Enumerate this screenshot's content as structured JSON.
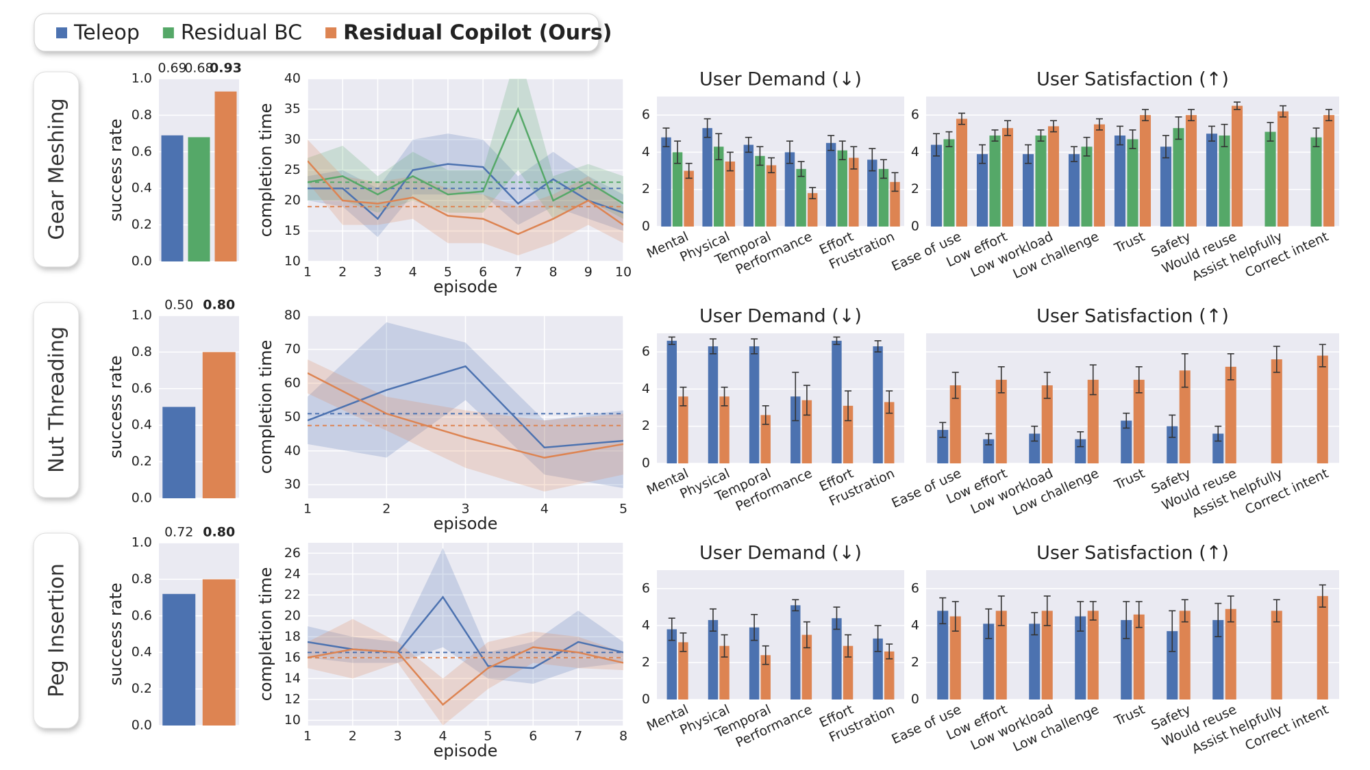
{
  "rows": [
    "Gear Meshing",
    "Nut Threading",
    "Peg Insertion"
  ],
  "chart_data": [
    {
      "type": "success",
      "ylabel": "success rate",
      "ylim": [
        0,
        1
      ],
      "yticks": [
        {
          "value": 0,
          "label": "0.0"
        },
        0.2,
        0.4,
        0.6,
        0.8,
        {
          "value": 1,
          "label": "1.0"
        }
      ],
      "grid": true,
      "series": [
        {
          "name": "Teleop",
          "color": "#4c72b0",
          "values": [
            0.69
          ]
        },
        {
          "name": "Residual BC",
          "color": "#55a868",
          "values": [
            0.68
          ]
        },
        {
          "name": "Residual Copilot (Ours)",
          "color": "#dd8452",
          "values": [
            0.93
          ]
        }
      ]
    },
    {
      "type": "line",
      "xlabel": "episode",
      "ylabel": "completion time",
      "x": [
        1,
        2,
        3,
        4,
        5,
        6,
        7,
        8,
        9,
        10
      ],
      "xlim": [
        1,
        10
      ],
      "xticks": [
        1,
        2,
        3,
        4,
        5,
        6,
        7,
        8,
        9,
        10
      ],
      "ylim": [
        10,
        40
      ],
      "yticks": [
        10,
        15,
        20,
        25,
        30,
        35,
        40
      ],
      "grid": true,
      "series": [
        {
          "color": "#4c72b0",
          "values": [
            22,
            22,
            17,
            25,
            26,
            25.5,
            19.5,
            23.5,
            20,
            18
          ],
          "lower": [
            20,
            19,
            14,
            21,
            21,
            21,
            16,
            19,
            17,
            15
          ],
          "upper": [
            24,
            25,
            22,
            30,
            31,
            30,
            24,
            28,
            24,
            21
          ],
          "mean": 22
        },
        {
          "color": "#55a868",
          "values": [
            23,
            24,
            21,
            24,
            21,
            21.5,
            35,
            20,
            23,
            19.5
          ],
          "lower": [
            20,
            20,
            18,
            20,
            18,
            18,
            25,
            17,
            20,
            17
          ],
          "upper": [
            27,
            29,
            24,
            28,
            25,
            25,
            45,
            24,
            26,
            24
          ],
          "mean": 23
        },
        {
          "color": "#dd8452",
          "values": [
            26.5,
            20,
            19.5,
            20.5,
            17.5,
            17,
            14.5,
            17,
            20,
            16
          ],
          "lower": [
            23,
            16,
            16,
            17,
            13,
            13,
            11,
            13,
            16,
            13
          ],
          "upper": [
            30,
            24,
            23,
            24,
            22,
            21,
            19,
            21,
            24,
            19
          ],
          "mean": 19
        }
      ]
    },
    {
      "type": "errorbar",
      "title": "User Demand (↓)",
      "categories": [
        "Mental",
        "Physical",
        "Temporal",
        "Performance",
        "Effort",
        "Frustration"
      ],
      "ylim": [
        0,
        7
      ],
      "yticks": [
        0,
        2,
        4,
        6
      ],
      "grid": true,
      "ytick_labels": true,
      "series": [
        {
          "color": "#4c72b0",
          "values": [
            4.8,
            5.3,
            4.4,
            4.0,
            4.5,
            3.6
          ],
          "errors": [
            0.5,
            0.5,
            0.4,
            0.6,
            0.4,
            0.6
          ]
        },
        {
          "color": "#55a868",
          "values": [
            4.0,
            4.3,
            3.8,
            3.1,
            4.1,
            3.1
          ],
          "errors": [
            0.6,
            0.7,
            0.5,
            0.4,
            0.5,
            0.5
          ]
        },
        {
          "color": "#dd8452",
          "values": [
            3.0,
            3.5,
            3.3,
            1.8,
            3.7,
            2.4
          ],
          "errors": [
            0.4,
            0.5,
            0.4,
            0.3,
            0.6,
            0.5
          ]
        }
      ]
    },
    {
      "type": "errorbar",
      "title": "User Satisfaction (↑)",
      "categories": [
        "Ease of use",
        "Low effort",
        "Low workload",
        "Low challenge",
        "Trust",
        "Safety",
        "Would reuse",
        "Assist helpfully",
        "Correct intent"
      ],
      "ylim": [
        0,
        7
      ],
      "yticks": [
        0,
        2,
        4,
        6
      ],
      "grid": true,
      "ytick_labels": true,
      "series": [
        {
          "color": "#4c72b0",
          "values": [
            4.4,
            3.9,
            3.9,
            3.9,
            4.9,
            4.3,
            5.0,
            null,
            null
          ],
          "errors": [
            0.6,
            0.5,
            0.5,
            0.4,
            0.5,
            0.6,
            0.4,
            null,
            null
          ]
        },
        {
          "color": "#55a868",
          "values": [
            4.7,
            4.9,
            4.9,
            4.3,
            4.7,
            5.3,
            4.9,
            5.1,
            4.8
          ],
          "errors": [
            0.4,
            0.3,
            0.3,
            0.5,
            0.5,
            0.6,
            0.6,
            0.5,
            0.5
          ]
        },
        {
          "color": "#dd8452",
          "values": [
            5.8,
            5.3,
            5.4,
            5.5,
            6.0,
            6.0,
            6.5,
            6.2,
            6.0
          ],
          "errors": [
            0.3,
            0.4,
            0.3,
            0.3,
            0.3,
            0.3,
            0.2,
            0.3,
            0.3
          ]
        }
      ]
    },
    {
      "type": "success",
      "ylabel": "success rate",
      "ylim": [
        0,
        1
      ],
      "yticks": [
        {
          "value": 0,
          "label": "0.0"
        },
        0.2,
        0.4,
        0.6,
        0.8,
        {
          "value": 1,
          "label": "1.0"
        }
      ],
      "grid": true,
      "series": [
        {
          "color": "#4c72b0",
          "values": [
            0.5
          ],
          "value_labels": [
            "0.50"
          ]
        },
        {
          "color": "#dd8452",
          "values": [
            0.8
          ],
          "value_labels": [
            "0.80"
          ]
        }
      ]
    },
    {
      "type": "line",
      "xlabel": "episode",
      "ylabel": "completion time",
      "x": [
        1,
        2,
        3,
        4,
        5
      ],
      "xlim": [
        1,
        5
      ],
      "xticks": [
        1,
        2,
        3,
        4,
        5
      ],
      "ylim": [
        26,
        80
      ],
      "yticks": [
        30,
        40,
        50,
        60,
        70,
        80
      ],
      "grid": true,
      "series": [
        {
          "color": "#4c72b0",
          "values": [
            49,
            58,
            65,
            41,
            43
          ],
          "lower": [
            42,
            38,
            55,
            33,
            29
          ],
          "upper": [
            56,
            78,
            72,
            49,
            52
          ],
          "mean": 51
        },
        {
          "color": "#dd8452",
          "values": [
            63,
            51,
            44,
            38,
            42
          ],
          "lower": [
            57,
            46,
            35,
            28,
            33
          ],
          "upper": [
            67,
            56,
            52,
            49,
            51
          ],
          "mean": 47.5
        }
      ]
    },
    {
      "type": "errorbar",
      "title": "User Demand (↓)",
      "categories": [
        "Mental",
        "Physical",
        "Temporal",
        "Performance",
        "Effort",
        "Frustration"
      ],
      "ylim": [
        0,
        7
      ],
      "yticks": [
        0,
        2,
        4,
        6
      ],
      "grid": true,
      "ytick_labels": true,
      "series": [
        {
          "color": "#4c72b0",
          "values": [
            6.6,
            6.3,
            6.3,
            3.6,
            6.6,
            6.3
          ],
          "errors": [
            0.2,
            0.4,
            0.4,
            1.3,
            0.2,
            0.3
          ]
        },
        {
          "color": "#dd8452",
          "values": [
            3.6,
            3.6,
            2.6,
            3.4,
            3.1,
            3.3
          ],
          "errors": [
            0.5,
            0.5,
            0.5,
            0.8,
            0.8,
            0.6
          ]
        }
      ]
    },
    {
      "type": "errorbar",
      "title": "User Satisfaction (↑)",
      "categories": [
        "Ease of use",
        "Low effort",
        "Low workload",
        "Low challenge",
        "Trust",
        "Safety",
        "Would reuse",
        "Assist helpfully",
        "Correct intent"
      ],
      "ylim": [
        0,
        7
      ],
      "yticks": [
        0,
        2,
        4,
        6
      ],
      "grid": true,
      "ytick_labels": false,
      "series": [
        {
          "color": "#4c72b0",
          "values": [
            1.8,
            1.3,
            1.6,
            1.3,
            2.3,
            2.0,
            1.6,
            null,
            null
          ],
          "errors": [
            0.4,
            0.3,
            0.4,
            0.4,
            0.4,
            0.6,
            0.4,
            null,
            null
          ]
        },
        {
          "color": "#dd8452",
          "values": [
            4.2,
            4.5,
            4.2,
            4.5,
            4.5,
            5.0,
            5.2,
            5.6,
            5.8
          ],
          "errors": [
            0.7,
            0.7,
            0.7,
            0.8,
            0.7,
            0.9,
            0.7,
            0.7,
            0.6
          ]
        }
      ]
    },
    {
      "type": "success",
      "ylabel": "success rate",
      "ylim": [
        0,
        1
      ],
      "yticks": [
        {
          "value": 0,
          "label": "0.0"
        },
        0.2,
        0.4,
        0.6,
        0.8,
        {
          "value": 1,
          "label": "1.0"
        }
      ],
      "grid": true,
      "series": [
        {
          "color": "#4c72b0",
          "values": [
            0.72
          ]
        },
        {
          "color": "#dd8452",
          "values": [
            0.8
          ],
          "value_labels": [
            "0.80"
          ]
        }
      ]
    },
    {
      "type": "line",
      "xlabel": "episode",
      "ylabel": "completion time",
      "x": [
        1,
        2,
        3,
        4,
        5,
        6,
        7,
        8
      ],
      "xlim": [
        1,
        8
      ],
      "xticks": [
        1,
        2,
        3,
        4,
        5,
        6,
        7,
        8
      ],
      "ylim": [
        9.5,
        27
      ],
      "yticks": [
        10,
        12,
        14,
        16,
        18,
        20,
        22,
        24,
        26
      ],
      "grid": true,
      "series": [
        {
          "color": "#4c72b0",
          "values": [
            17.5,
            16.8,
            16.5,
            21.8,
            15.2,
            15,
            17.5,
            16.5
          ],
          "lower": [
            16,
            15.5,
            15.5,
            17,
            14,
            13.5,
            15,
            15.5
          ],
          "upper": [
            19,
            18,
            17.5,
            26.5,
            16.5,
            17.5,
            20.5,
            17.5
          ],
          "mean": 16.5
        },
        {
          "color": "#dd8452",
          "values": [
            16,
            16.8,
            16.5,
            11.5,
            15,
            17,
            16.5,
            15.5
          ],
          "lower": [
            15,
            14,
            15.5,
            9.5,
            13,
            15.5,
            15,
            14.8
          ],
          "upper": [
            17.5,
            19.7,
            17.5,
            14,
            17.5,
            18.5,
            18,
            16.5
          ],
          "mean": 16
        }
      ]
    },
    {
      "type": "errorbar",
      "title": "User Demand (↓)",
      "categories": [
        "Mental",
        "Physical",
        "Temporal",
        "Performance",
        "Effort",
        "Frustration"
      ],
      "ylim": [
        0,
        7
      ],
      "yticks": [
        0,
        2,
        4,
        6
      ],
      "grid": true,
      "ytick_labels": true,
      "series": [
        {
          "color": "#4c72b0",
          "values": [
            3.8,
            4.3,
            3.9,
            5.1,
            4.4,
            3.3
          ],
          "errors": [
            0.6,
            0.6,
            0.7,
            0.3,
            0.6,
            0.7
          ]
        },
        {
          "color": "#dd8452",
          "values": [
            3.1,
            2.9,
            2.4,
            3.5,
            2.9,
            2.6
          ],
          "errors": [
            0.5,
            0.6,
            0.5,
            0.7,
            0.6,
            0.4
          ]
        }
      ]
    },
    {
      "type": "errorbar",
      "title": "User Satisfaction (↑)",
      "categories": [
        "Ease of use",
        "Low effort",
        "Low workload",
        "Low challenge",
        "Trust",
        "Safety",
        "Would reuse",
        "Assist helpfully",
        "Correct intent"
      ],
      "ylim": [
        0,
        7
      ],
      "yticks": [
        0,
        2,
        4,
        6
      ],
      "grid": true,
      "ytick_labels": true,
      "series": [
        {
          "color": "#4c72b0",
          "values": [
            4.8,
            4.1,
            4.1,
            4.5,
            4.3,
            3.7,
            4.3,
            null,
            null
          ],
          "errors": [
            0.7,
            0.8,
            0.6,
            0.8,
            1.0,
            1.1,
            0.9,
            null,
            null
          ]
        },
        {
          "color": "#dd8452",
          "values": [
            4.5,
            4.8,
            4.8,
            4.8,
            4.6,
            4.8,
            4.9,
            4.8,
            5.6
          ],
          "errors": [
            0.8,
            0.8,
            0.8,
            0.5,
            0.7,
            0.6,
            0.7,
            0.6,
            0.6
          ]
        }
      ]
    }
  ]
}
